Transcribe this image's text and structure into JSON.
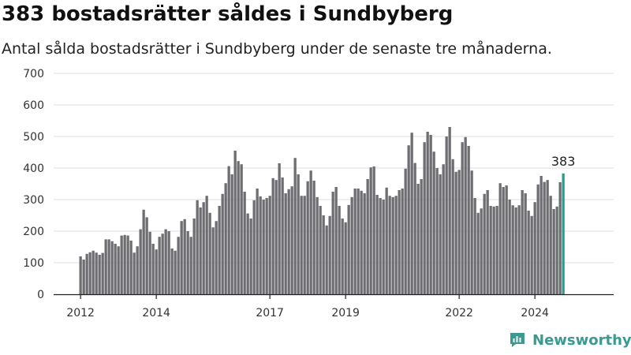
{
  "header": {
    "title": "383 bostadsrätter såldes i Sundbyberg",
    "subtitle": "Antal sålda bostadsrätter i Sundbyberg under de senaste tre månaderna."
  },
  "brand": {
    "name": "Newsworthy"
  },
  "colors": {
    "bar": "#6e6d72",
    "highlight": "#2a9d8f",
    "grid": "#dddddd",
    "brand": "#3a9a92"
  },
  "chart_data": {
    "type": "bar",
    "title": "383 bostadsrätter såldes i Sundbyberg",
    "subtitle": "Antal sålda bostadsrätter i Sundbyberg under de senaste tre månaderna.",
    "xlabel": "",
    "ylabel": "",
    "ylim": [
      0,
      700
    ],
    "yticks": [
      0,
      100,
      200,
      300,
      400,
      500,
      600,
      700
    ],
    "xticks": [
      "2012",
      "2014",
      "2017",
      "2019",
      "2022",
      "2024"
    ],
    "grid": true,
    "frequency": "monthly, rolling three-month sum",
    "highlight_label": "383",
    "values": [
      120,
      110,
      128,
      133,
      138,
      132,
      125,
      131,
      174,
      174,
      168,
      160,
      152,
      186,
      188,
      186,
      170,
      132,
      152,
      206,
      268,
      244,
      198,
      160,
      142,
      182,
      192,
      206,
      200,
      145,
      138,
      182,
      232,
      238,
      200,
      182,
      240,
      298,
      275,
      292,
      312,
      258,
      212,
      232,
      280,
      318,
      352,
      406,
      380,
      455,
      422,
      412,
      325,
      256,
      240,
      298,
      335,
      310,
      300,
      305,
      312,
      368,
      362,
      415,
      370,
      320,
      333,
      342,
      432,
      380,
      312,
      312,
      358,
      392,
      360,
      308,
      280,
      250,
      218,
      248,
      325,
      340,
      280,
      240,
      228,
      283,
      308,
      335,
      335,
      328,
      320,
      365,
      402,
      405,
      315,
      305,
      300,
      338,
      312,
      308,
      312,
      330,
      335,
      398,
      472,
      512,
      416,
      350,
      365,
      482,
      515,
      505,
      452,
      400,
      380,
      412,
      500,
      530,
      428,
      388,
      394,
      482,
      498,
      470,
      392,
      305,
      258,
      272,
      318,
      330,
      280,
      278,
      280,
      352,
      340,
      345,
      300,
      282,
      275,
      282,
      330,
      320,
      265,
      248,
      292,
      348,
      375,
      356,
      362,
      312,
      270,
      278,
      355,
      383
    ]
  }
}
